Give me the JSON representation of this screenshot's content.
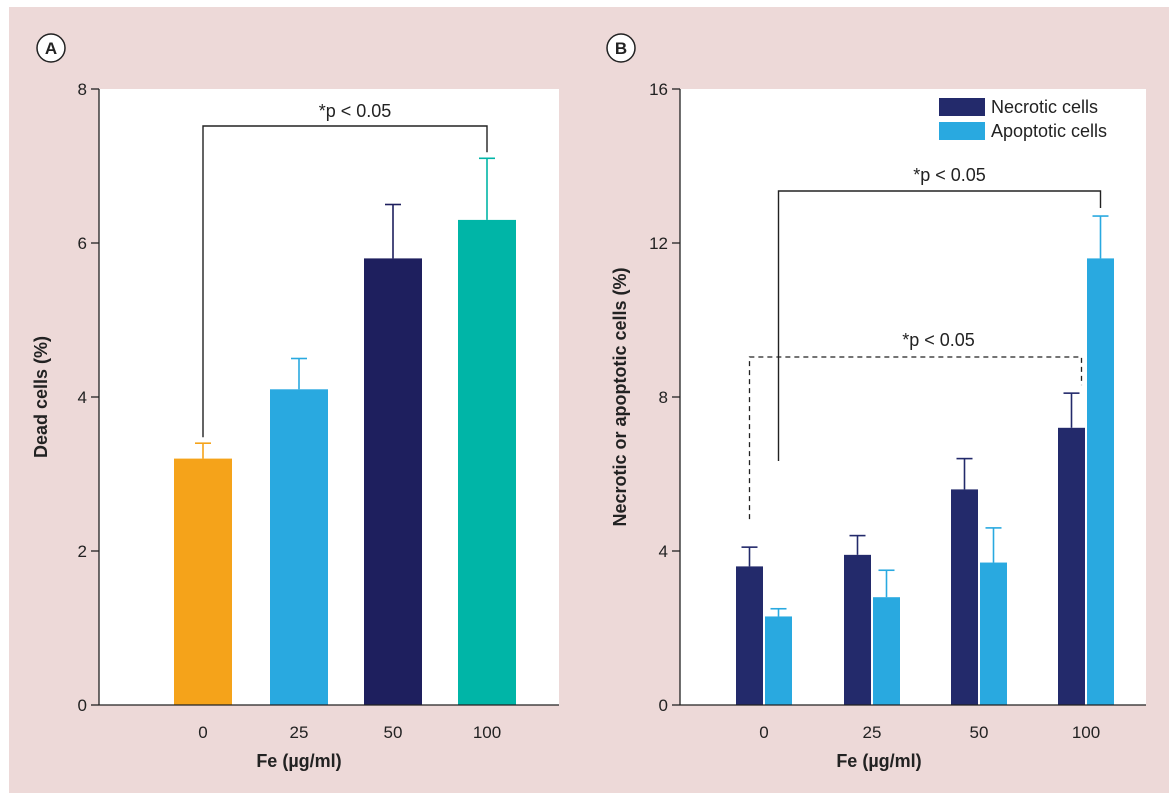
{
  "colors": {
    "background": "#edd9d8",
    "plot_bg": "#ffffff",
    "axis": "#222222"
  },
  "chart_data": [
    {
      "panel": "A",
      "type": "bar",
      "categories": [
        "0",
        "25",
        "50",
        "100"
      ],
      "values": [
        3.2,
        4.1,
        5.8,
        6.3
      ],
      "errors": [
        0.2,
        0.4,
        0.7,
        0.8
      ],
      "bar_colors": [
        "#f5a31a",
        "#29a9e0",
        "#1e1f5e",
        "#00b5a7"
      ],
      "xlabel": "Fe (µg/ml)",
      "ylabel": "Dead cells (%)",
      "ylim": [
        0,
        8
      ],
      "yticks": [
        0,
        2,
        4,
        6,
        8
      ],
      "grid": false,
      "annotations": [
        {
          "text": "*p < 0.05",
          "from": "0",
          "to": "100",
          "style": "solid"
        }
      ]
    },
    {
      "panel": "B",
      "type": "bar",
      "categories": [
        "0",
        "25",
        "50",
        "100"
      ],
      "series": [
        {
          "name": "Necrotic cells",
          "color": "#232a6b",
          "values": [
            3.6,
            3.9,
            5.6,
            7.2
          ],
          "errors": [
            0.5,
            0.5,
            0.8,
            0.9
          ]
        },
        {
          "name": "Apoptotic cells",
          "color": "#29a9e0",
          "values": [
            2.3,
            2.8,
            3.7,
            11.6
          ],
          "errors": [
            0.2,
            0.7,
            0.9,
            1.1
          ]
        }
      ],
      "xlabel": "Fe (µg/ml)",
      "ylabel": "Necrotic or apoptotic cells (%)",
      "ylim": [
        0,
        16
      ],
      "yticks": [
        0,
        4,
        8,
        12,
        16
      ],
      "grid": false,
      "legend": "top-right",
      "annotations": [
        {
          "text": "*p < 0.05",
          "from": "0",
          "to": "100",
          "style": "solid",
          "series": "Apoptotic cells"
        },
        {
          "text": "*p < 0.05",
          "from": "0",
          "to": "100",
          "style": "dashed",
          "series": "Necrotic cells"
        }
      ]
    }
  ]
}
